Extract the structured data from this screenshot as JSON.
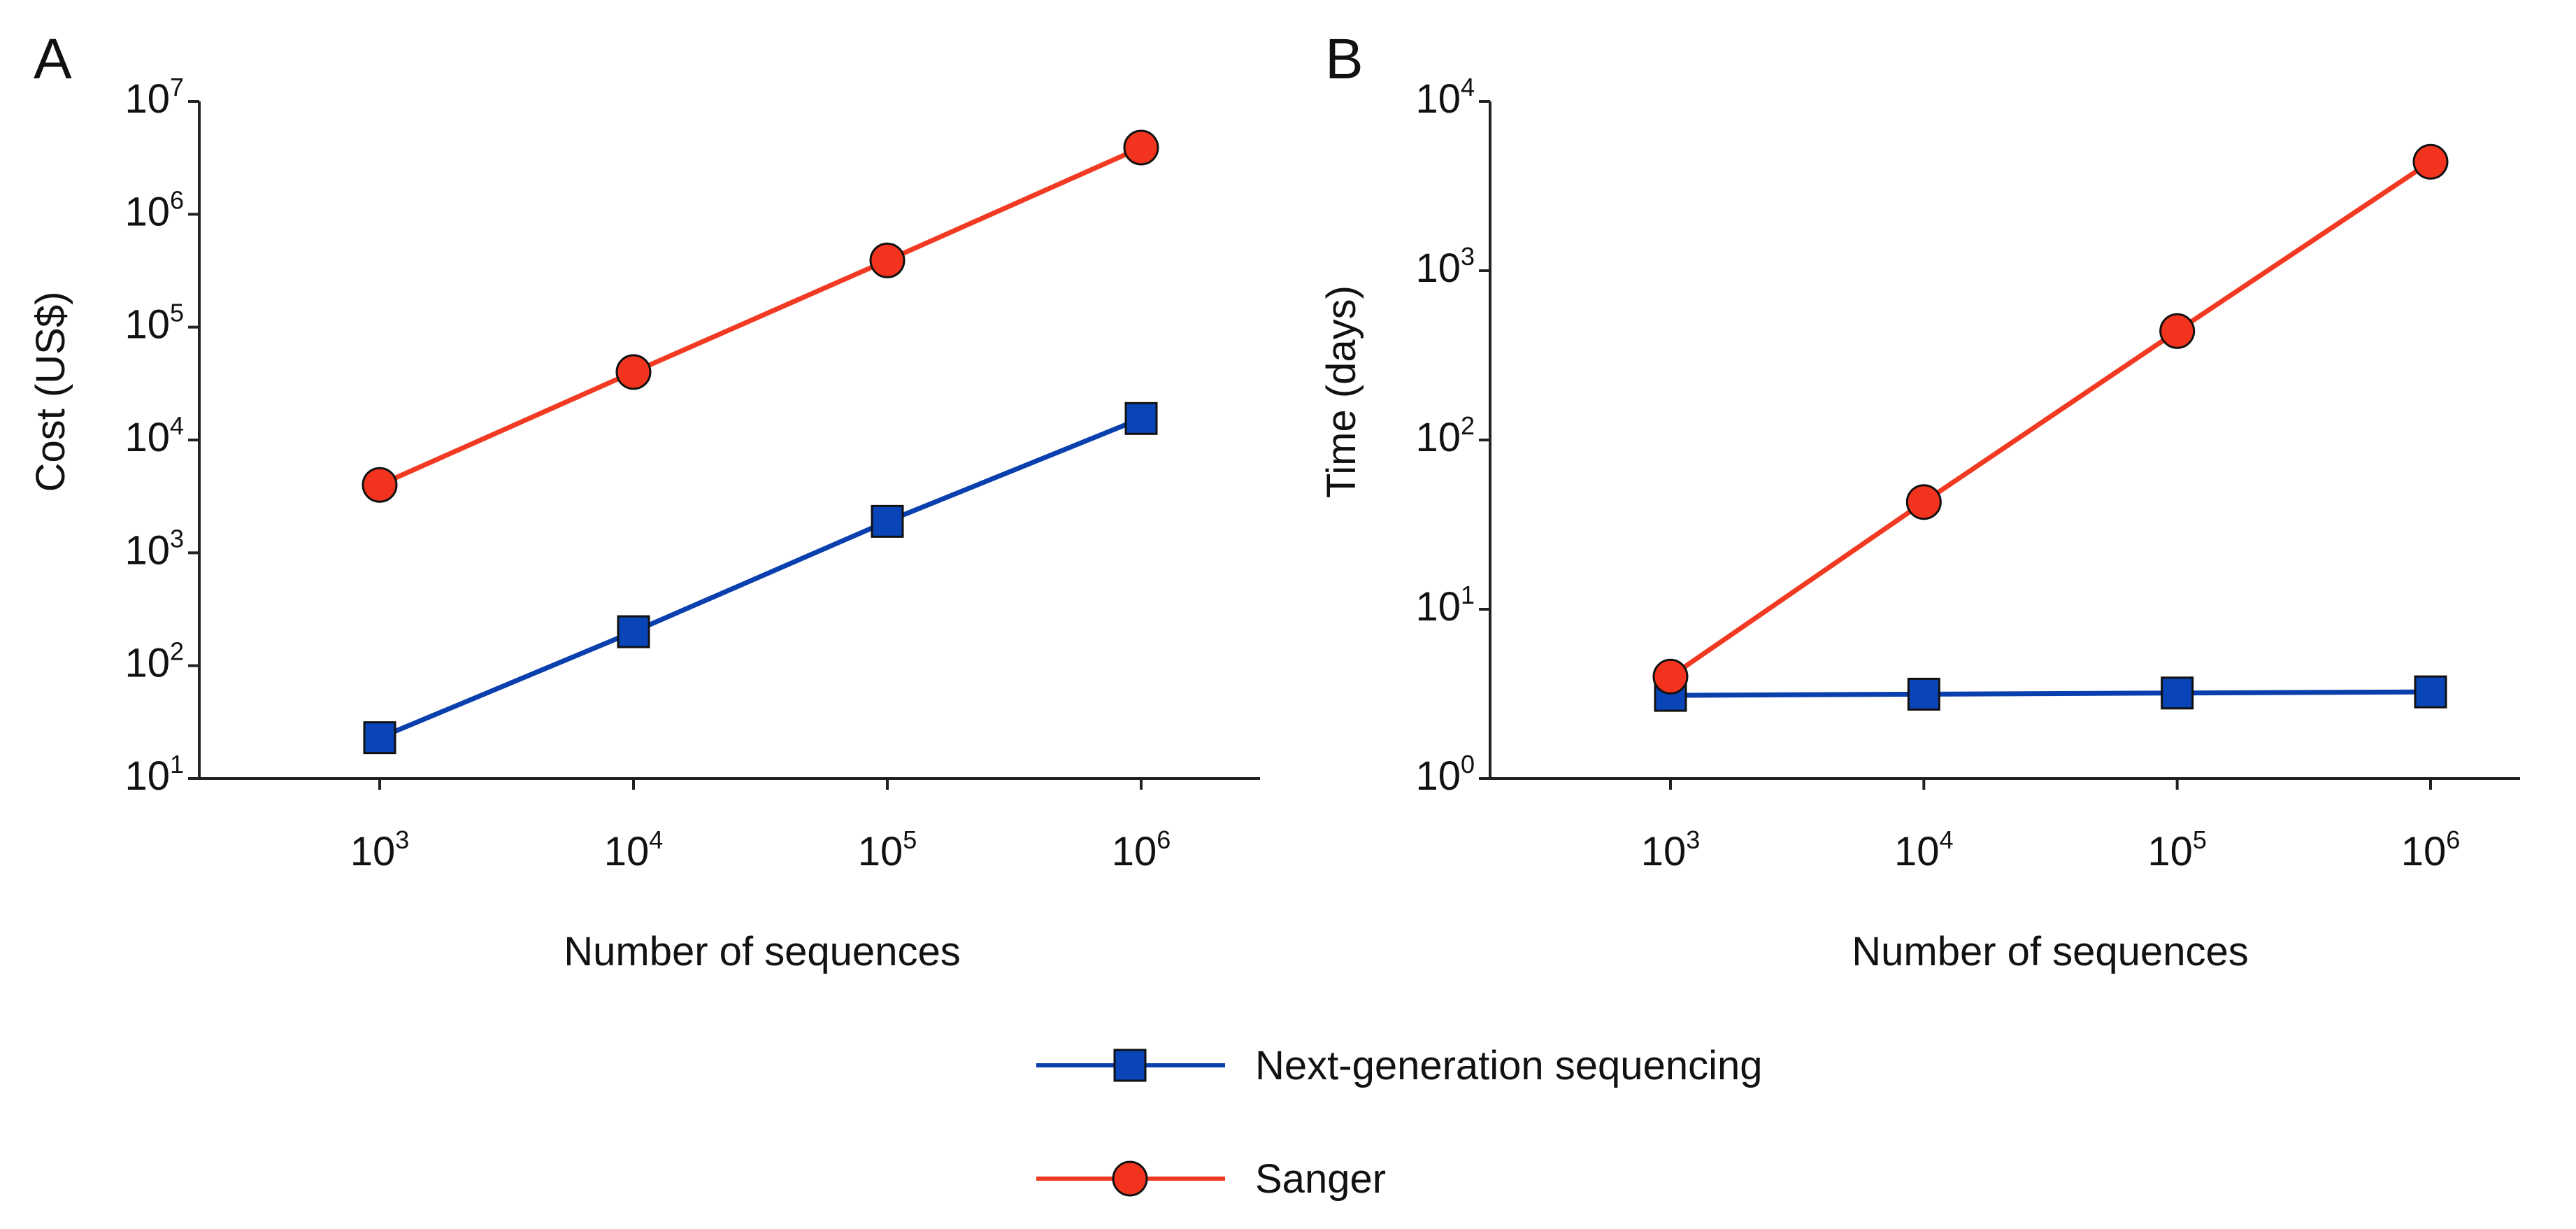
{
  "colors": {
    "ngs": "#0a45b8",
    "ngs_line": "#0a3fae",
    "sanger": "#f2341e",
    "sanger_line": "#f23a22",
    "axis": "#222222",
    "marker_edge": "#111111"
  },
  "series_styles": {
    "ngs": {
      "marker": "square",
      "color_key": "ngs",
      "line_key": "ngs_line"
    },
    "sanger": {
      "marker": "circle",
      "color_key": "sanger",
      "line_key": "sanger_line"
    }
  },
  "chart_data": [
    {
      "panel_label": "A",
      "type": "line",
      "xscale": "log",
      "yscale": "log",
      "x": [
        1000,
        10000,
        100000,
        1000000
      ],
      "x_tick_labels": [
        {
          "base": "10",
          "exp": "3"
        },
        {
          "base": "10",
          "exp": "4"
        },
        {
          "base": "10",
          "exp": "5"
        },
        {
          "base": "10",
          "exp": "6"
        }
      ],
      "y_tick_labels": [
        {
          "base": "10",
          "exp": "1"
        },
        {
          "base": "10",
          "exp": "2"
        },
        {
          "base": "10",
          "exp": "3"
        },
        {
          "base": "10",
          "exp": "4"
        },
        {
          "base": "10",
          "exp": "5"
        },
        {
          "base": "10",
          "exp": "6"
        },
        {
          "base": "10",
          "exp": "7"
        }
      ],
      "ylim_exp": [
        1,
        7
      ],
      "xlabel": "Number of sequences",
      "ylabel": "Cost (US$)",
      "series": [
        {
          "key": "ngs",
          "name": "Next-generation sequencing",
          "values": [
            23,
            200,
            1900,
            15500
          ]
        },
        {
          "key": "sanger",
          "name": "Sanger",
          "values": [
            4000,
            40000,
            390000,
            3900000
          ]
        }
      ]
    },
    {
      "panel_label": "B",
      "type": "line",
      "xscale": "log",
      "yscale": "log",
      "x": [
        1000,
        10000,
        100000,
        1000000
      ],
      "x_tick_labels": [
        {
          "base": "10",
          "exp": "3"
        },
        {
          "base": "10",
          "exp": "4"
        },
        {
          "base": "10",
          "exp": "5"
        },
        {
          "base": "10",
          "exp": "6"
        }
      ],
      "y_tick_labels": [
        {
          "base": "10",
          "exp": "0"
        },
        {
          "base": "10",
          "exp": "1"
        },
        {
          "base": "10",
          "exp": "2"
        },
        {
          "base": "10",
          "exp": "3"
        },
        {
          "base": "10",
          "exp": "4"
        }
      ],
      "ylim_exp": [
        0,
        4
      ],
      "xlabel": "Number of sequences",
      "ylabel": "Time (days)",
      "series": [
        {
          "key": "ngs",
          "name": "Next-generation sequencing",
          "values": [
            3.1,
            3.15,
            3.2,
            3.25
          ]
        },
        {
          "key": "sanger",
          "name": "Sanger",
          "values": [
            4.0,
            43,
            440,
            4400
          ]
        }
      ]
    }
  ],
  "legend": {
    "placement": "bottom-center",
    "entries": [
      {
        "key": "ngs",
        "label": "Next-generation sequencing"
      },
      {
        "key": "sanger",
        "label": "Sanger"
      }
    ]
  }
}
